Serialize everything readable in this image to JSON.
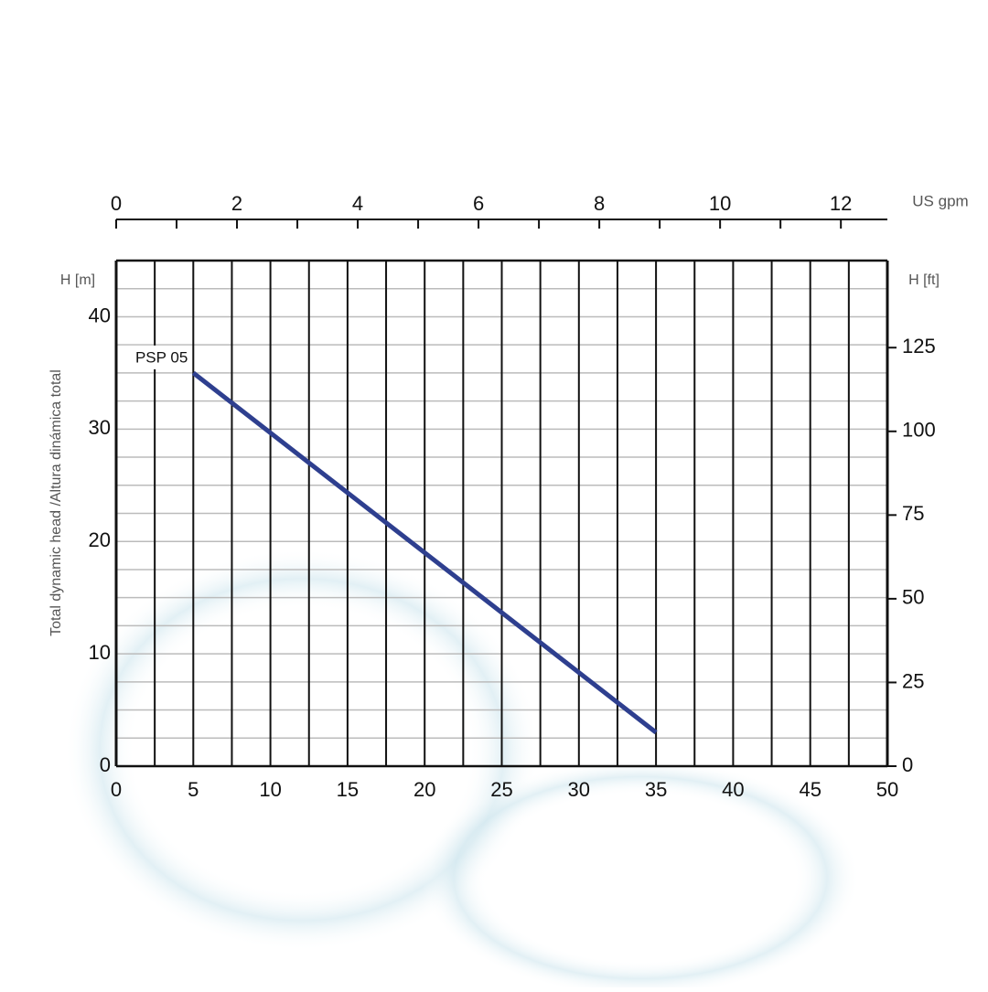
{
  "chart_data": {
    "type": "line",
    "ylabel": "Total dynamic head /Altura dinámica total",
    "yunit": "H [m]",
    "y2unit": "H [ft]",
    "x2unit": "US gpm",
    "series": [
      {
        "name": "PSP 05",
        "color": "#2e3f8f",
        "x": [
          5,
          35
        ],
        "values": [
          35,
          3
        ]
      }
    ],
    "xlim": [
      0,
      50
    ],
    "xticks": [
      0,
      5,
      10,
      15,
      20,
      25,
      30,
      35,
      40,
      45,
      50
    ],
    "xminorticks": [
      2.5,
      7.5,
      12.5,
      17.5,
      22.5,
      27.5,
      32.5,
      37.5,
      42.5,
      47.5
    ],
    "ylim": [
      0,
      45
    ],
    "yticks": [
      0,
      10,
      20,
      30,
      40
    ],
    "yminorticks": [
      2.5,
      5,
      7.5,
      12.5,
      15,
      17.5,
      22.5,
      25,
      27.5,
      32.5,
      35,
      37.5,
      42.5
    ],
    "y2lim": [
      0,
      151
    ],
    "y2ticks": [
      0,
      25,
      50,
      75,
      100,
      125
    ],
    "x2lim": [
      0,
      12.77
    ],
    "x2ticks": [
      0,
      2,
      4,
      6,
      8,
      10,
      12
    ],
    "x2minorticks": [
      1,
      3,
      5,
      7,
      9,
      11
    ],
    "grid": true
  }
}
